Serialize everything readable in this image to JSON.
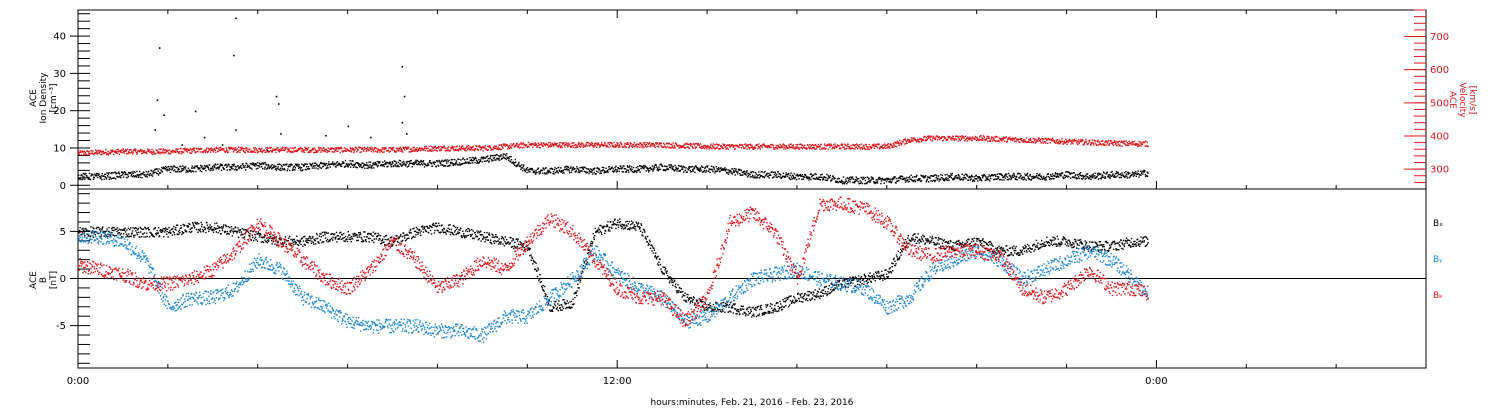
{
  "colors": {
    "black": "#000000",
    "red": "#e0171c",
    "blue": "#1a86d6"
  },
  "xaxis": {
    "label": "hours:minutes, Feb. 21, 2016 - Feb. 23, 2016",
    "range_hours": [
      0,
      30
    ],
    "major_ticks": [
      0,
      12,
      24
    ],
    "tick_labels": [
      "0:00",
      "12:00",
      "0:00"
    ],
    "minor_step_hours": 2
  },
  "chart_data": [
    {
      "type": "scatter",
      "panel": "top",
      "left_axis": {
        "label_lines": [
          "ACE",
          "Ion Density",
          "[cm⁻³]"
        ],
        "range": [
          -1,
          47
        ],
        "ticks": [
          0,
          10,
          20,
          30,
          40
        ],
        "tick_labels": [
          "0",
          "10",
          "20",
          "30",
          "40"
        ]
      },
      "right_axis": {
        "label_lines": [
          "ACE",
          "Velocity",
          "[km/s]"
        ],
        "range": [
          240,
          780
        ],
        "ticks": [
          300,
          400,
          500,
          600,
          700
        ],
        "tick_labels": [
          "300",
          "400",
          "500",
          "600",
          "700"
        ],
        "color": "red"
      },
      "series": [
        {
          "color": "black",
          "axis": "left",
          "x": [
            0,
            0.5,
            1,
            1.5,
            2,
            2.5,
            3,
            3.5,
            4,
            4.5,
            5,
            5.5,
            6,
            6.5,
            7,
            7.5,
            8,
            8.5,
            9,
            9.5,
            10,
            10.5,
            11,
            11.5,
            12,
            12.5,
            13,
            13.5,
            14,
            14.5,
            15,
            15.5,
            16,
            16.5,
            17,
            17.5,
            18,
            18.5,
            19,
            19.5,
            20,
            20.5,
            21,
            21.5,
            22,
            22.5,
            23,
            23.5,
            23.8
          ],
          "values": [
            2.5,
            2.5,
            3,
            3,
            4.5,
            4.5,
            5,
            5,
            5.5,
            5,
            5,
            5.5,
            6,
            5.5,
            6,
            6,
            6,
            6.5,
            7,
            8,
            4,
            4,
            4.5,
            4,
            4.5,
            4.5,
            5,
            4.5,
            4.5,
            4,
            3,
            3,
            2.5,
            2.5,
            1.5,
            1.5,
            1.5,
            2,
            2,
            2.5,
            2,
            2.5,
            2.5,
            2.5,
            3,
            2.5,
            3,
            3,
            3.5
          ]
        },
        {
          "color": "red",
          "axis": "right",
          "x": [
            0,
            1,
            2,
            3,
            4,
            5,
            6,
            7,
            8,
            9,
            10,
            11,
            12,
            13,
            14,
            15,
            16,
            17,
            17.5,
            18,
            18.5,
            19,
            20,
            21,
            22,
            23,
            23.8
          ],
          "values": [
            350,
            355,
            355,
            360,
            360,
            360,
            360,
            360,
            365,
            365,
            375,
            375,
            375,
            375,
            370,
            370,
            370,
            370,
            370,
            370,
            390,
            395,
            395,
            390,
            385,
            380,
            378
          ]
        }
      ],
      "outliers_left": [
        {
          "x": 1.8,
          "y": 37
        },
        {
          "x": 1.75,
          "y": 23
        },
        {
          "x": 1.7,
          "y": 15
        },
        {
          "x": 1.9,
          "y": 19
        },
        {
          "x": 2.3,
          "y": 11
        },
        {
          "x": 2.6,
          "y": 20
        },
        {
          "x": 2.8,
          "y": 13
        },
        {
          "x": 3.2,
          "y": 11
        },
        {
          "x": 3.5,
          "y": 15
        },
        {
          "x": 3.5,
          "y": 45
        },
        {
          "x": 3.45,
          "y": 35
        },
        {
          "x": 4.2,
          "y": 9.5
        },
        {
          "x": 4.4,
          "y": 24
        },
        {
          "x": 4.45,
          "y": 22
        },
        {
          "x": 4.5,
          "y": 14
        },
        {
          "x": 5.5,
          "y": 13.5
        },
        {
          "x": 6,
          "y": 16
        },
        {
          "x": 6.5,
          "y": 13
        },
        {
          "x": 7.2,
          "y": 32
        },
        {
          "x": 7.25,
          "y": 24
        },
        {
          "x": 7.2,
          "y": 17
        },
        {
          "x": 7.3,
          "y": 14
        }
      ]
    },
    {
      "type": "scatter",
      "panel": "bottom",
      "left_axis": {
        "label_lines": [
          "ACE",
          "B",
          "[nT]"
        ],
        "range": [
          -9.5,
          9.5
        ],
        "ticks": [
          -5,
          0,
          5
        ],
        "tick_labels": [
          "-5",
          "0",
          "5"
        ]
      },
      "zero_line": true,
      "legend": [
        "Bₓ",
        "Bᵧ",
        "Bₖ"
      ],
      "legend_colors": [
        "black",
        "blue",
        "red"
      ],
      "series": [
        {
          "color": "black",
          "x": [
            0,
            0.5,
            1,
            1.5,
            2,
            2.5,
            3,
            3.5,
            4,
            4.5,
            5,
            5.5,
            6,
            6.5,
            7,
            7.5,
            8,
            8.5,
            9,
            9.5,
            10,
            10.5,
            11,
            11.5,
            12,
            12.5,
            13,
            13.5,
            14,
            14.5,
            15,
            15.5,
            16,
            16.5,
            17,
            17.5,
            18,
            18.5,
            19,
            19.5,
            20,
            20.5,
            21,
            21.5,
            22,
            22.5,
            23,
            23.5,
            23.8
          ],
          "values": [
            5,
            5,
            5,
            5,
            5,
            5.5,
            5.5,
            5,
            4.5,
            4,
            4,
            4.5,
            4.5,
            4.5,
            4,
            5,
            5.5,
            5,
            4.5,
            4,
            3.5,
            -3,
            -2.5,
            5,
            6,
            5.5,
            1,
            -2,
            -3,
            -3,
            -3.5,
            -3,
            -2,
            -1.5,
            -0.5,
            0,
            0.5,
            4.5,
            4,
            3.5,
            4,
            3,
            3,
            4,
            4,
            3.5,
            3.5,
            4,
            4
          ]
        },
        {
          "color": "blue",
          "x": [
            0,
            0.5,
            1,
            1.5,
            2,
            2.5,
            3,
            3.5,
            4,
            4.5,
            5,
            5.5,
            6,
            6.5,
            7,
            7.5,
            8,
            8.5,
            9,
            9.5,
            10,
            10.5,
            11,
            11.5,
            12,
            12.5,
            13,
            13.5,
            14,
            14.5,
            15,
            15.5,
            16,
            16.5,
            17,
            17.5,
            18,
            18.5,
            19,
            19.5,
            20,
            20.5,
            21,
            21.5,
            22,
            22.5,
            23,
            23.5,
            23.8
          ],
          "values": [
            4.5,
            4.5,
            4,
            2,
            -3,
            -2,
            -2,
            -1,
            2,
            1,
            -2,
            -3,
            -4.5,
            -5,
            -5,
            -5,
            -5.5,
            -5.5,
            -6,
            -4,
            -4,
            -2,
            0,
            3,
            0.5,
            -1,
            -2,
            -4.5,
            -4,
            -2,
            0,
            0.5,
            1,
            0,
            -0.5,
            -1,
            -3,
            -2,
            1,
            2,
            3,
            2,
            0,
            1,
            2,
            3,
            2,
            0,
            -2
          ]
        },
        {
          "color": "red",
          "x": [
            0,
            0.5,
            1,
            1.5,
            2,
            2.5,
            3,
            3.5,
            4,
            4.5,
            5,
            5.5,
            6,
            6.5,
            7,
            7.5,
            8,
            8.5,
            9,
            9.5,
            10,
            10.5,
            11,
            11.5,
            12,
            12.5,
            13,
            13.5,
            14,
            14.5,
            15,
            15.5,
            16,
            16.5,
            17,
            17.5,
            18,
            18.5,
            19,
            19.5,
            20,
            20.5,
            21,
            21.5,
            22,
            22.5,
            23,
            23.5,
            23.8
          ],
          "values": [
            1.5,
            1,
            0.5,
            -0.5,
            -0.5,
            0,
            1,
            3,
            6,
            4,
            2,
            0,
            -1,
            1,
            4,
            2,
            -1,
            0,
            2,
            1,
            4,
            6.5,
            5,
            2,
            -1,
            -2,
            -2,
            -4.5,
            -2,
            6,
            7,
            5,
            0,
            8,
            8,
            7.5,
            6,
            3,
            2.5,
            3,
            3,
            2.5,
            -1,
            -2,
            -1,
            1,
            -1,
            -1,
            -1.5
          ]
        }
      ]
    }
  ]
}
